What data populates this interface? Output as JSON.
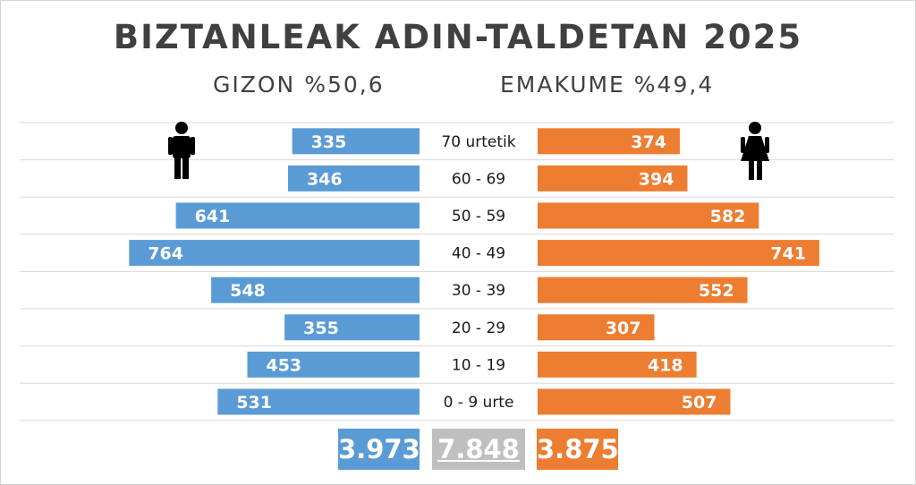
{
  "chart_data": {
    "type": "bar",
    "title": "BIZTANLEAK ADIN-TALDETAN 2025",
    "male_subtitle": "GIZON %50,6",
    "female_subtitle": "EMAKUME %49,4",
    "categories": [
      "70 urtetik",
      "60 - 69",
      "50 - 59",
      "40 - 49",
      "30 - 39",
      "20 - 29",
      "10 - 19",
      "0 - 9 urte"
    ],
    "series": [
      {
        "values": [
          335,
          346,
          641,
          764,
          548,
          355,
          453,
          531
        ],
        "color": "#5b9bd5"
      },
      {
        "values": [
          374,
          394,
          582,
          741,
          552,
          307,
          418,
          507
        ],
        "color": "#ed7d31"
      }
    ],
    "totals": {
      "male": "3.973",
      "all": "7.848",
      "female": "3.875"
    },
    "total_colors": {
      "male": "#5b9bd5",
      "all": "#bfbfbf",
      "female": "#ed7d31"
    },
    "xlim": [
      0,
      800
    ],
    "grid": true,
    "icons": {
      "male": "man-icon",
      "female": "woman-icon"
    }
  }
}
